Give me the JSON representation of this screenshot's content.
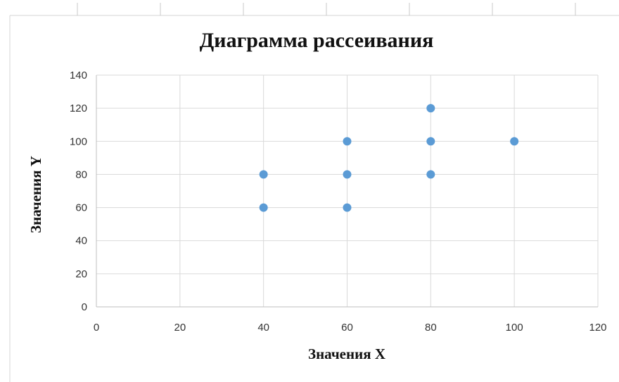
{
  "chart_data": {
    "type": "scatter",
    "title": "Диаграмма рассеивания",
    "xlabel": "Значения X",
    "ylabel": "Значения Y",
    "xlim": [
      0,
      120
    ],
    "ylim": [
      0,
      140
    ],
    "xticks": [
      0,
      20,
      40,
      60,
      80,
      100,
      120
    ],
    "yticks": [
      0,
      20,
      40,
      60,
      80,
      100,
      120,
      140
    ],
    "grid": true,
    "legend": "none",
    "series": [
      {
        "color": "#5b9bd5",
        "points": [
          {
            "x": 40,
            "y": 80
          },
          {
            "x": 40,
            "y": 60
          },
          {
            "x": 60,
            "y": 100
          },
          {
            "x": 60,
            "y": 80
          },
          {
            "x": 60,
            "y": 60
          },
          {
            "x": 80,
            "y": 120
          },
          {
            "x": 80,
            "y": 100
          },
          {
            "x": 80,
            "y": 80
          },
          {
            "x": 100,
            "y": 100
          }
        ]
      }
    ]
  }
}
